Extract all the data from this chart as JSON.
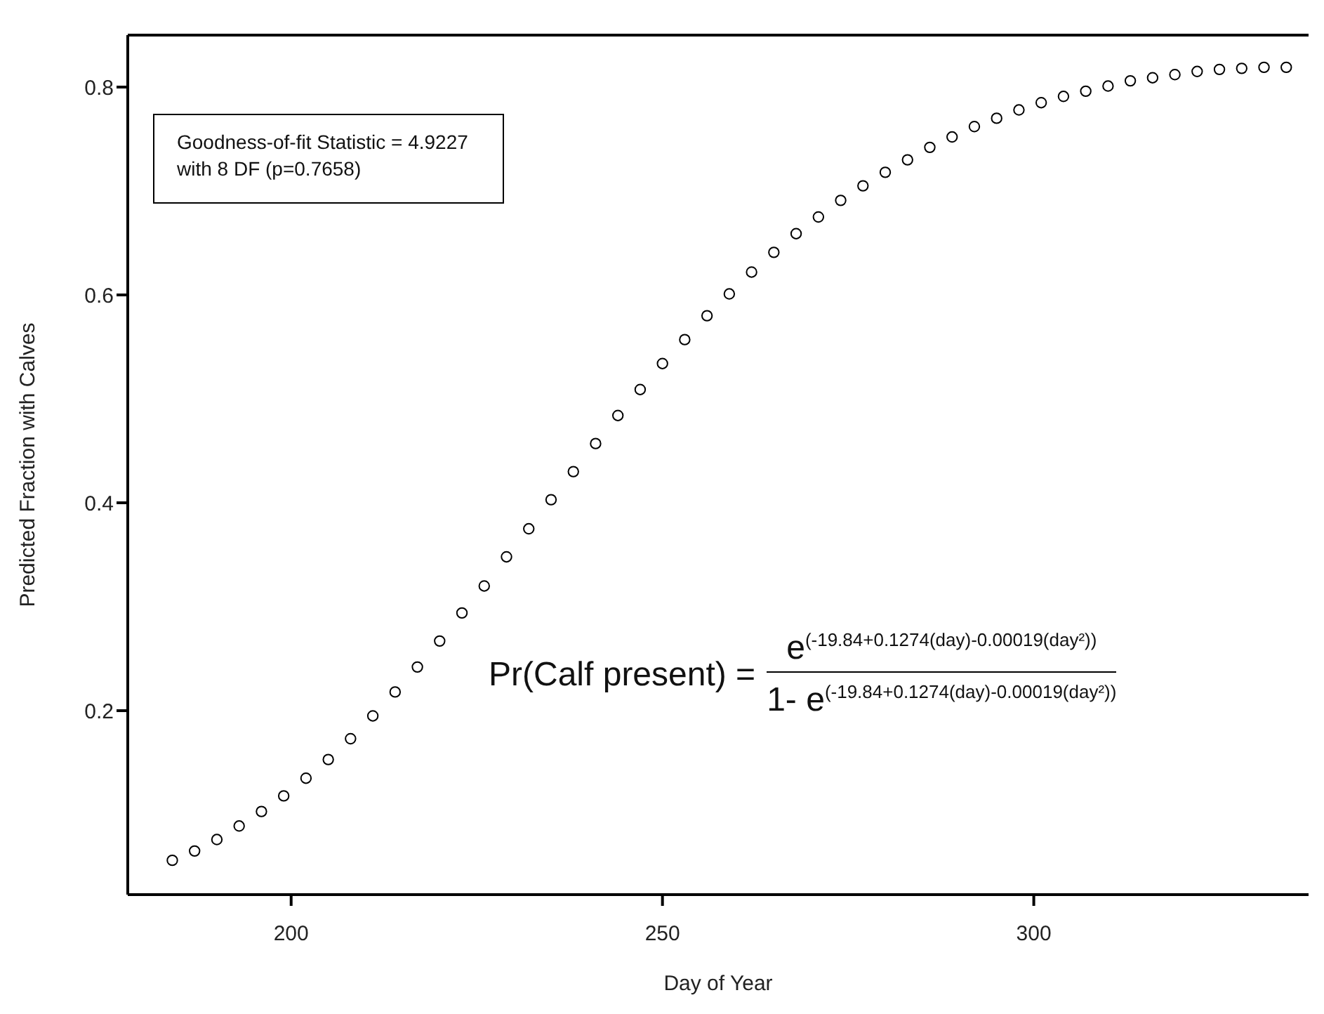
{
  "chart_data": {
    "type": "scatter",
    "xlabel": "Day of Year",
    "ylabel": "Predicted Fraction with Calves",
    "x": [
      184,
      187,
      190,
      193,
      196,
      199,
      202,
      205,
      208,
      211,
      214,
      217,
      220,
      223,
      226,
      229,
      232,
      235,
      238,
      241,
      244,
      247,
      250,
      253,
      256,
      259,
      262,
      265,
      268,
      271,
      274,
      277,
      280,
      283,
      286,
      289,
      292,
      295,
      298,
      301,
      304,
      307,
      310,
      313,
      316,
      319,
      322,
      325,
      328,
      331,
      334
    ],
    "series": [
      {
        "color": "#000000",
        "values": [
          0.056,
          0.065,
          0.076,
          0.089,
          0.103,
          0.118,
          0.135,
          0.153,
          0.173,
          0.195,
          0.218,
          0.242,
          0.267,
          0.294,
          0.32,
          0.348,
          0.375,
          0.403,
          0.43,
          0.457,
          0.484,
          0.509,
          0.534,
          0.557,
          0.58,
          0.601,
          0.622,
          0.641,
          0.659,
          0.675,
          0.691,
          0.705,
          0.718,
          0.73,
          0.742,
          0.752,
          0.762,
          0.77,
          0.778,
          0.785,
          0.791,
          0.796,
          0.801,
          0.806,
          0.809,
          0.812,
          0.815,
          0.817,
          0.818,
          0.819,
          0.819
        ]
      }
    ],
    "marker": "circle",
    "xlim": [
      178,
      337
    ],
    "xticks": [
      200,
      250,
      300
    ],
    "ylim": [
      0.023,
      0.85
    ],
    "yticks": [
      {
        "value": 0.2,
        "label": "0.2"
      },
      {
        "value": 0.4,
        "label": "0.4"
      },
      {
        "value": 0.6,
        "label": "0.6"
      },
      {
        "value": 0.8,
        "label": "0.8"
      }
    ],
    "grid": false,
    "legend": false,
    "annotations": [
      "Goodness-of-fit Statistic = 4.9227 with 8 DF (p=0.7658)",
      "Pr(Calf present) =",
      "e$^{(-19.84+0.1274(day)-0.00019(day²))}$",
      "1- e$^{(-19.84+0.1274(day)-0.00019(day²))}$"
    ]
  }
}
